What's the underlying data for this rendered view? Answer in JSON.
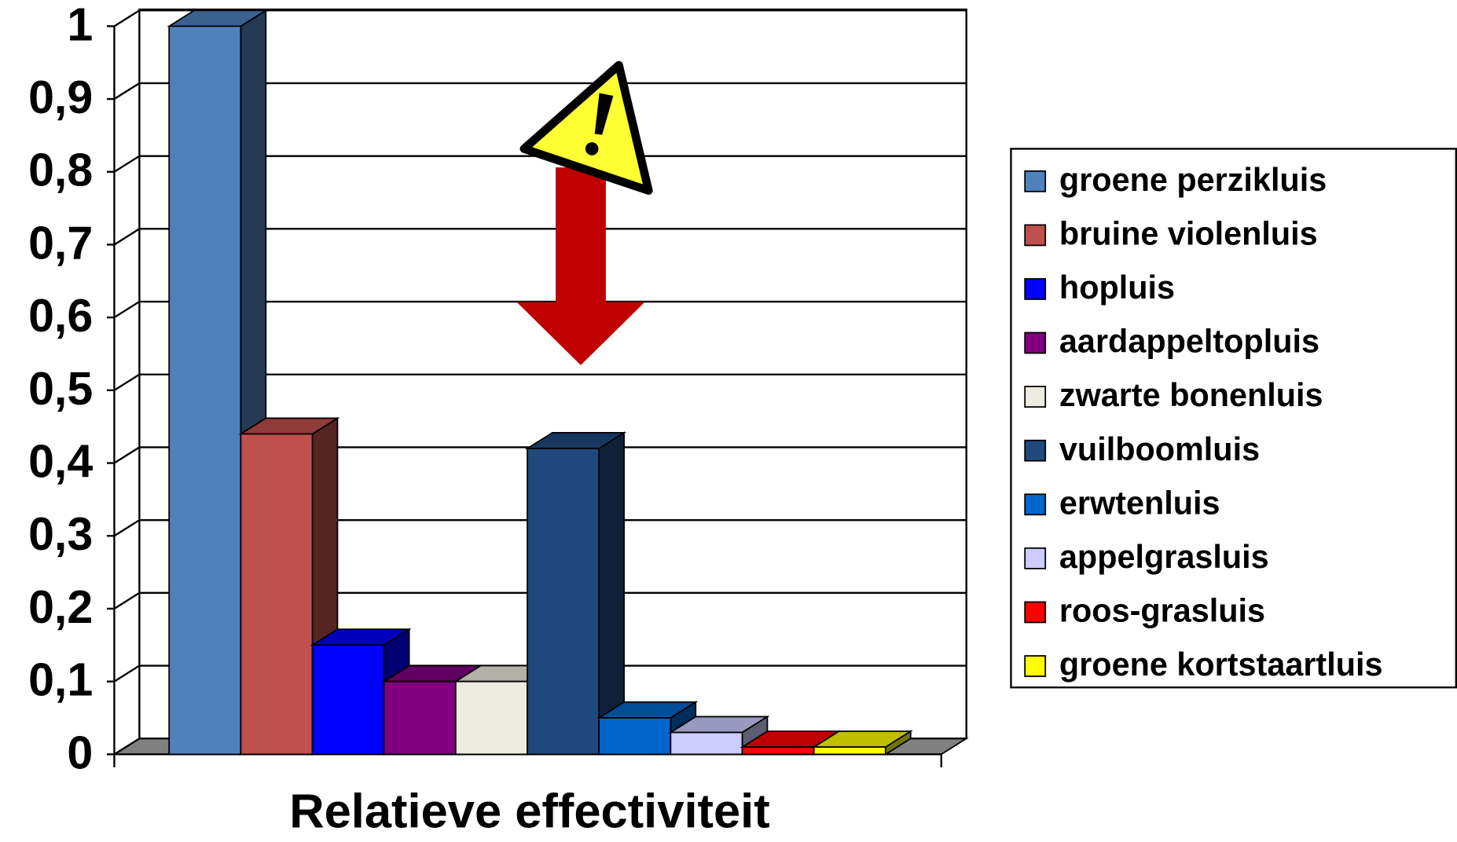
{
  "chart_data": {
    "type": "bar3d",
    "x_label": "Relatieve effectiviteit",
    "ylim": [
      0,
      1
    ],
    "yticks": [
      0,
      {
        "value": 0.1,
        "label": "0,1"
      },
      {
        "value": 0.2,
        "label": "0,2"
      },
      {
        "value": 0.3,
        "label": "0,3"
      },
      {
        "value": 0.4,
        "label": "0,4"
      },
      {
        "value": 0.5,
        "label": "0,5"
      },
      {
        "value": 0.6,
        "label": "0,6"
      },
      {
        "value": 0.7,
        "label": "0,7"
      },
      {
        "value": 0.8,
        "label": "0,8"
      },
      {
        "value": 0.9,
        "label": "0,9"
      },
      1
    ],
    "grid": true,
    "legend": "right",
    "series": [
      {
        "name": "groene perzikluis",
        "color": "#4f81bd",
        "values": [
          1.0
        ]
      },
      {
        "name": "bruine violenluis",
        "color": "#c0504d",
        "values": [
          0.44
        ]
      },
      {
        "name": "hopluis",
        "color": "#0000ff",
        "values": [
          0.15
        ]
      },
      {
        "name": "aardappeltopluis",
        "color": "#800080",
        "values": [
          0.1
        ]
      },
      {
        "name": "zwarte bonenluis",
        "color": "#eeebe0",
        "values": [
          0.1
        ]
      },
      {
        "name": "vuilboomluis",
        "color": "#1f497d",
        "values": [
          0.42
        ]
      },
      {
        "name": "erwtenluis",
        "color": "#0066cc",
        "values": [
          0.05
        ]
      },
      {
        "name": "appelgrasluis",
        "color": "#ccccff",
        "values": [
          0.03
        ]
      },
      {
        "name": "roos-grasluis",
        "color": "#ff0000",
        "values": [
          0.01
        ]
      },
      {
        "name": "groene kortstaartluis",
        "color": "#ffff00",
        "values": [
          0.01
        ]
      }
    ]
  }
}
